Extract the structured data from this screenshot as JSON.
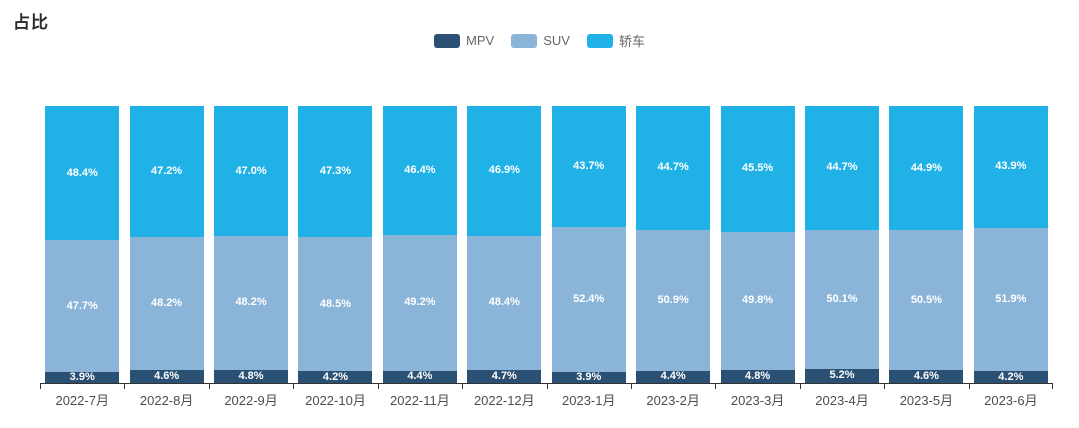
{
  "title": "占比",
  "chart_data": {
    "type": "bar",
    "stacked": true,
    "percent_stack": true,
    "title": "占比",
    "categories": [
      "2022-7月",
      "2022-8月",
      "2022-9月",
      "2022-10月",
      "2022-11月",
      "2022-12月",
      "2023-1月",
      "2023-2月",
      "2023-3月",
      "2023-4月",
      "2023-5月",
      "2023-6月"
    ],
    "series": [
      {
        "name": "MPV",
        "color": "#2A5173",
        "values": [
          3.9,
          4.6,
          4.8,
          4.2,
          4.4,
          4.7,
          3.9,
          4.4,
          4.8,
          5.2,
          4.6,
          4.2
        ]
      },
      {
        "name": "SUV",
        "color": "#8AB4D8",
        "values": [
          47.7,
          48.2,
          48.2,
          48.5,
          49.2,
          48.4,
          52.4,
          50.9,
          49.8,
          50.1,
          50.5,
          51.9
        ]
      },
      {
        "name": "轿车",
        "color": "#20B2E7",
        "values": [
          48.4,
          47.2,
          47.0,
          47.3,
          46.4,
          46.9,
          43.7,
          44.7,
          45.5,
          44.7,
          44.9,
          43.9
        ]
      }
    ],
    "value_label_format": "{value}%",
    "ylim": [
      0,
      100
    ],
    "grid": false,
    "legend_position": "top-center",
    "xlabel": "",
    "ylabel": ""
  },
  "colors": {
    "axis_line": "#333333",
    "axis_label": "#4d4d4d",
    "value_label": "#ffffff"
  }
}
